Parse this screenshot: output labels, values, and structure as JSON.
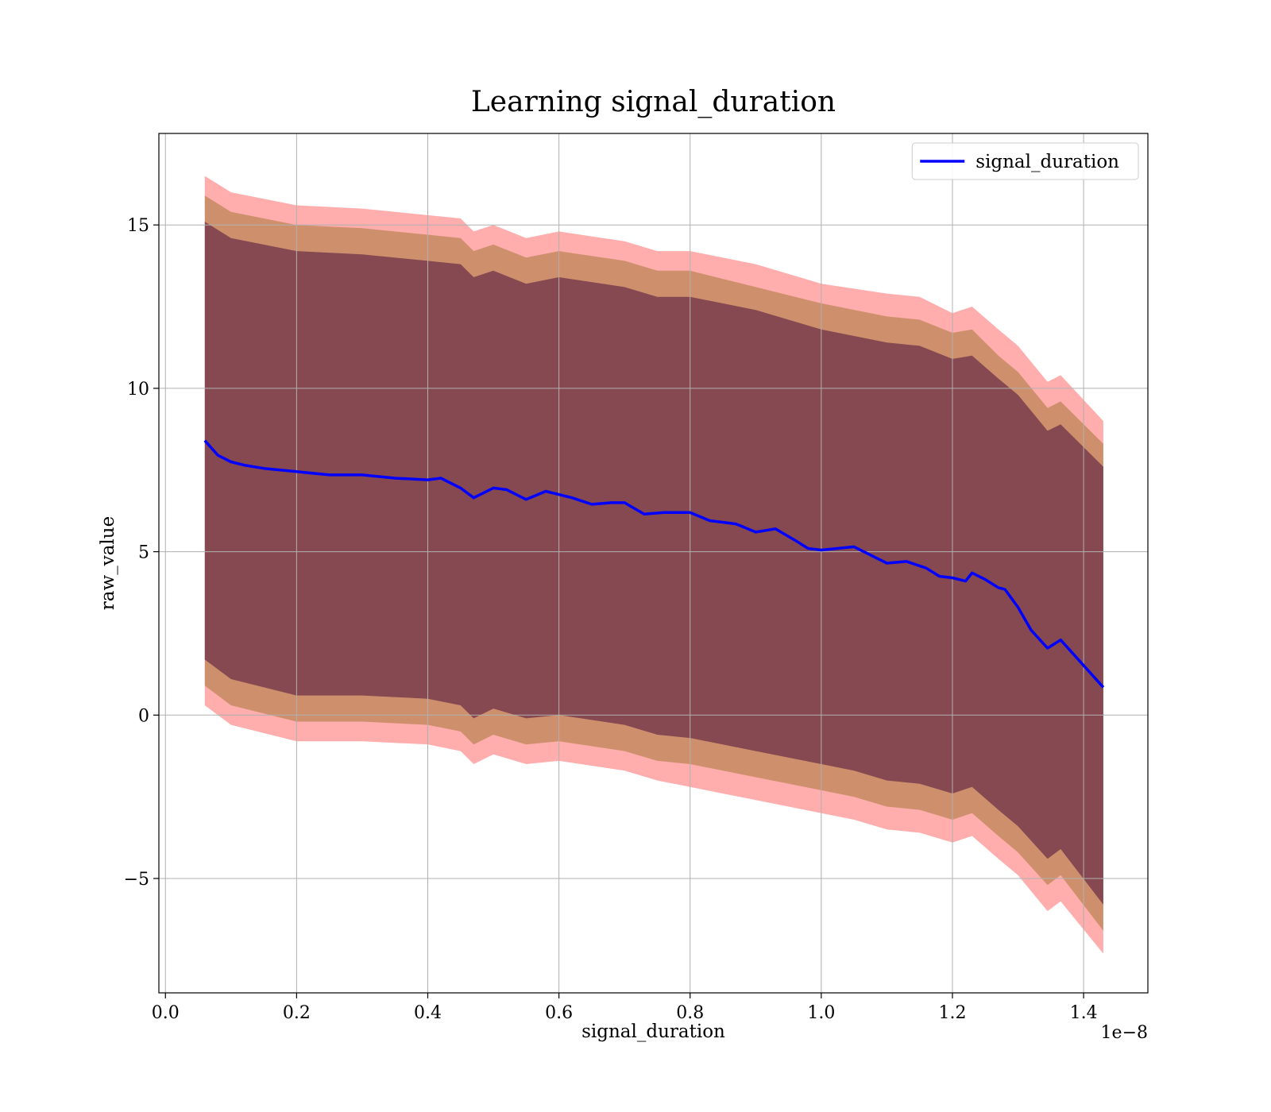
{
  "chart_data": {
    "type": "line",
    "title": "Learning signal_duration",
    "xlabel": "signal_duration",
    "ylabel": "raw_value",
    "x_offset_label": "1e−8",
    "x_scale": 1e-08,
    "xlim": [
      -0.01,
      1.498
    ],
    "ylim": [
      -8.5,
      17.8
    ],
    "x_ticks": [
      0.0,
      0.2,
      0.4,
      0.6,
      0.8,
      1.0,
      1.2,
      1.4
    ],
    "x_tick_labels": [
      "0.0",
      "0.2",
      "0.4",
      "0.6",
      "0.8",
      "1.0",
      "1.2",
      "1.4"
    ],
    "y_ticks": [
      -5,
      0,
      5,
      10,
      15
    ],
    "y_tick_labels": [
      "−5",
      "0",
      "5",
      "10",
      "15"
    ],
    "grid": true,
    "legend_position": "top-right",
    "series": [
      {
        "name": "signal_duration",
        "color": "#0000ff",
        "points": [
          [
            0.06,
            8.4
          ],
          [
            0.08,
            7.95
          ],
          [
            0.1,
            7.75
          ],
          [
            0.12,
            7.65
          ],
          [
            0.15,
            7.55
          ],
          [
            0.2,
            7.45
          ],
          [
            0.25,
            7.35
          ],
          [
            0.3,
            7.35
          ],
          [
            0.35,
            7.25
          ],
          [
            0.4,
            7.2
          ],
          [
            0.42,
            7.25
          ],
          [
            0.45,
            6.95
          ],
          [
            0.47,
            6.65
          ],
          [
            0.5,
            6.95
          ],
          [
            0.52,
            6.9
          ],
          [
            0.55,
            6.6
          ],
          [
            0.58,
            6.85
          ],
          [
            0.62,
            6.65
          ],
          [
            0.65,
            6.45
          ],
          [
            0.68,
            6.5
          ],
          [
            0.7,
            6.5
          ],
          [
            0.73,
            6.15
          ],
          [
            0.76,
            6.2
          ],
          [
            0.8,
            6.2
          ],
          [
            0.83,
            5.95
          ],
          [
            0.87,
            5.85
          ],
          [
            0.9,
            5.6
          ],
          [
            0.93,
            5.7
          ],
          [
            0.96,
            5.35
          ],
          [
            0.98,
            5.1
          ],
          [
            1.0,
            5.05
          ],
          [
            1.05,
            5.15
          ],
          [
            1.08,
            4.85
          ],
          [
            1.1,
            4.65
          ],
          [
            1.13,
            4.7
          ],
          [
            1.16,
            4.5
          ],
          [
            1.18,
            4.25
          ],
          [
            1.2,
            4.2
          ],
          [
            1.22,
            4.1
          ],
          [
            1.23,
            4.35
          ],
          [
            1.25,
            4.15
          ],
          [
            1.27,
            3.9
          ],
          [
            1.28,
            3.85
          ],
          [
            1.3,
            3.3
          ],
          [
            1.32,
            2.6
          ],
          [
            1.345,
            2.05
          ],
          [
            1.365,
            2.3
          ],
          [
            1.43,
            0.85
          ]
        ]
      }
    ],
    "bands": [
      {
        "label": "",
        "color": "#ff0000",
        "opacity": 0.32,
        "upper": [
          [
            0.06,
            16.5
          ],
          [
            0.1,
            16.0
          ],
          [
            0.2,
            15.6
          ],
          [
            0.3,
            15.5
          ],
          [
            0.4,
            15.3
          ],
          [
            0.45,
            15.2
          ],
          [
            0.47,
            14.8
          ],
          [
            0.5,
            15.0
          ],
          [
            0.55,
            14.6
          ],
          [
            0.6,
            14.8
          ],
          [
            0.7,
            14.5
          ],
          [
            0.75,
            14.2
          ],
          [
            0.8,
            14.2
          ],
          [
            0.9,
            13.8
          ],
          [
            1.0,
            13.2
          ],
          [
            1.1,
            12.9
          ],
          [
            1.15,
            12.8
          ],
          [
            1.2,
            12.3
          ],
          [
            1.23,
            12.5
          ],
          [
            1.27,
            11.8
          ],
          [
            1.3,
            11.3
          ],
          [
            1.345,
            10.2
          ],
          [
            1.365,
            10.4
          ],
          [
            1.43,
            9.0
          ]
        ],
        "lower": [
          [
            0.06,
            0.3
          ],
          [
            0.1,
            -0.3
          ],
          [
            0.2,
            -0.8
          ],
          [
            0.3,
            -0.8
          ],
          [
            0.4,
            -0.9
          ],
          [
            0.45,
            -1.1
          ],
          [
            0.47,
            -1.5
          ],
          [
            0.5,
            -1.2
          ],
          [
            0.55,
            -1.5
          ],
          [
            0.6,
            -1.4
          ],
          [
            0.7,
            -1.7
          ],
          [
            0.75,
            -2.0
          ],
          [
            0.8,
            -2.2
          ],
          [
            0.9,
            -2.6
          ],
          [
            1.0,
            -3.0
          ],
          [
            1.05,
            -3.2
          ],
          [
            1.1,
            -3.5
          ],
          [
            1.15,
            -3.6
          ],
          [
            1.2,
            -3.9
          ],
          [
            1.23,
            -3.7
          ],
          [
            1.27,
            -4.4
          ],
          [
            1.3,
            -4.9
          ],
          [
            1.345,
            -6.0
          ],
          [
            1.365,
            -5.7
          ],
          [
            1.43,
            -7.3
          ]
        ]
      },
      {
        "label": "",
        "color": "#8b6914",
        "opacity": 0.42,
        "upper": [
          [
            0.06,
            15.9
          ],
          [
            0.1,
            15.4
          ],
          [
            0.2,
            15.0
          ],
          [
            0.3,
            14.9
          ],
          [
            0.4,
            14.7
          ],
          [
            0.45,
            14.6
          ],
          [
            0.47,
            14.2
          ],
          [
            0.5,
            14.4
          ],
          [
            0.55,
            14.0
          ],
          [
            0.6,
            14.2
          ],
          [
            0.7,
            13.9
          ],
          [
            0.75,
            13.6
          ],
          [
            0.8,
            13.6
          ],
          [
            0.9,
            13.1
          ],
          [
            1.0,
            12.6
          ],
          [
            1.1,
            12.2
          ],
          [
            1.15,
            12.1
          ],
          [
            1.2,
            11.7
          ],
          [
            1.23,
            11.8
          ],
          [
            1.27,
            11.0
          ],
          [
            1.3,
            10.5
          ],
          [
            1.345,
            9.4
          ],
          [
            1.365,
            9.6
          ],
          [
            1.43,
            8.3
          ]
        ],
        "lower": [
          [
            0.06,
            0.9
          ],
          [
            0.1,
            0.3
          ],
          [
            0.2,
            -0.2
          ],
          [
            0.3,
            -0.2
          ],
          [
            0.4,
            -0.3
          ],
          [
            0.45,
            -0.5
          ],
          [
            0.47,
            -0.9
          ],
          [
            0.5,
            -0.6
          ],
          [
            0.55,
            -0.9
          ],
          [
            0.6,
            -0.8
          ],
          [
            0.7,
            -1.1
          ],
          [
            0.75,
            -1.4
          ],
          [
            0.8,
            -1.5
          ],
          [
            0.9,
            -1.9
          ],
          [
            1.0,
            -2.3
          ],
          [
            1.05,
            -2.5
          ],
          [
            1.1,
            -2.8
          ],
          [
            1.15,
            -2.9
          ],
          [
            1.2,
            -3.2
          ],
          [
            1.23,
            -3.0
          ],
          [
            1.27,
            -3.7
          ],
          [
            1.3,
            -4.2
          ],
          [
            1.345,
            -5.2
          ],
          [
            1.365,
            -4.9
          ],
          [
            1.43,
            -6.6
          ]
        ]
      },
      {
        "label": "",
        "color": "#4b0f3c",
        "opacity": 0.55,
        "upper": [
          [
            0.06,
            15.1
          ],
          [
            0.1,
            14.6
          ],
          [
            0.2,
            14.2
          ],
          [
            0.3,
            14.1
          ],
          [
            0.4,
            13.9
          ],
          [
            0.45,
            13.8
          ],
          [
            0.47,
            13.4
          ],
          [
            0.5,
            13.6
          ],
          [
            0.55,
            13.2
          ],
          [
            0.6,
            13.4
          ],
          [
            0.7,
            13.1
          ],
          [
            0.75,
            12.8
          ],
          [
            0.8,
            12.8
          ],
          [
            0.9,
            12.4
          ],
          [
            1.0,
            11.8
          ],
          [
            1.1,
            11.4
          ],
          [
            1.15,
            11.3
          ],
          [
            1.2,
            10.9
          ],
          [
            1.23,
            11.0
          ],
          [
            1.27,
            10.3
          ],
          [
            1.3,
            9.8
          ],
          [
            1.345,
            8.7
          ],
          [
            1.365,
            8.9
          ],
          [
            1.43,
            7.6
          ]
        ],
        "lower": [
          [
            0.06,
            1.7
          ],
          [
            0.1,
            1.1
          ],
          [
            0.2,
            0.6
          ],
          [
            0.3,
            0.6
          ],
          [
            0.4,
            0.5
          ],
          [
            0.45,
            0.3
          ],
          [
            0.47,
            -0.1
          ],
          [
            0.5,
            0.2
          ],
          [
            0.55,
            -0.1
          ],
          [
            0.6,
            0.0
          ],
          [
            0.7,
            -0.3
          ],
          [
            0.75,
            -0.6
          ],
          [
            0.8,
            -0.7
          ],
          [
            0.9,
            -1.1
          ],
          [
            1.0,
            -1.5
          ],
          [
            1.05,
            -1.7
          ],
          [
            1.1,
            -2.0
          ],
          [
            1.15,
            -2.1
          ],
          [
            1.2,
            -2.4
          ],
          [
            1.23,
            -2.2
          ],
          [
            1.27,
            -2.9
          ],
          [
            1.3,
            -3.4
          ],
          [
            1.345,
            -4.4
          ],
          [
            1.365,
            -4.1
          ],
          [
            1.43,
            -5.8
          ]
        ]
      }
    ]
  }
}
